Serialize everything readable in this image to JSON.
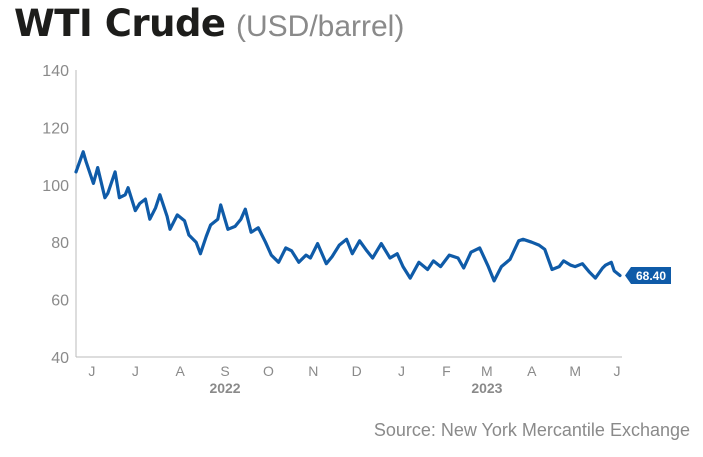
{
  "title": "WTI Crude",
  "unit": "(USD/barrel)",
  "source": "Source: New York Mercantile Exchange",
  "colors": {
    "line": "#0f5ba8",
    "badge": "#0f5ba8",
    "axis": "#bbbbbb",
    "tick_text": "#8a8a8a",
    "title": "#1d1d1b"
  },
  "chart_data": {
    "type": "line",
    "title": "WTI Crude",
    "ylabel": "",
    "xlabel": "",
    "ylim": [
      40,
      140
    ],
    "yticks": [
      "140",
      "120",
      "100",
      "80",
      "60",
      "40"
    ],
    "months": [
      "J",
      "J",
      "A",
      "S",
      "O",
      "N",
      "D",
      "J",
      "F",
      "M",
      "A",
      "M",
      "J"
    ],
    "years": [
      "2022",
      "2023"
    ],
    "x": [
      "2022-06-01",
      "2022-06-06",
      "2022-06-08",
      "2022-06-13",
      "2022-06-16",
      "2022-06-21",
      "2022-06-23",
      "2022-06-28",
      "2022-07-01",
      "2022-07-05",
      "2022-07-07",
      "2022-07-12",
      "2022-07-15",
      "2022-07-19",
      "2022-07-22",
      "2022-07-26",
      "2022-07-29",
      "2022-08-03",
      "2022-08-05",
      "2022-08-10",
      "2022-08-15",
      "2022-08-18",
      "2022-08-23",
      "2022-08-26",
      "2022-08-30",
      "2022-09-02",
      "2022-09-07",
      "2022-09-09",
      "2022-09-14",
      "2022-09-19",
      "2022-09-23",
      "2022-09-26",
      "2022-09-30",
      "2022-10-05",
      "2022-10-10",
      "2022-10-14",
      "2022-10-19",
      "2022-10-24",
      "2022-10-28",
      "2022-11-02",
      "2022-11-07",
      "2022-11-10",
      "2022-11-15",
      "2022-11-21",
      "2022-11-25",
      "2022-11-30",
      "2022-12-05",
      "2022-12-09",
      "2022-12-14",
      "2022-12-19",
      "2022-12-23",
      "2022-12-29",
      "2023-01-04",
      "2023-01-09",
      "2023-01-13",
      "2023-01-18",
      "2023-01-24",
      "2023-01-30",
      "2023-02-03",
      "2023-02-08",
      "2023-02-14",
      "2023-02-20",
      "2023-02-24",
      "2023-03-01",
      "2023-03-07",
      "2023-03-13",
      "2023-03-17",
      "2023-03-22",
      "2023-03-28",
      "2023-04-03",
      "2023-04-06",
      "2023-04-12",
      "2023-04-17",
      "2023-04-21",
      "2023-04-26",
      "2023-05-01",
      "2023-05-04",
      "2023-05-09",
      "2023-05-12",
      "2023-05-17",
      "2023-05-22",
      "2023-05-26",
      "2023-05-31",
      "2023-06-02",
      "2023-06-06",
      "2023-06-08",
      "2023-06-12"
    ],
    "series": [
      {
        "values": [
          104.5,
          111.5,
          108,
          100.5,
          106,
          95.5,
          97,
          104.5,
          95.5,
          96.5,
          99,
          91,
          93.5,
          95,
          88,
          92,
          96.5,
          89,
          84.5,
          89.5,
          87.5,
          82.5,
          80,
          76,
          82,
          86,
          88,
          93,
          84.5,
          85.5,
          88,
          91.5,
          83.5,
          85,
          80,
          75.5,
          73,
          78,
          77,
          73,
          75.5,
          74.5,
          79.5,
          72.5,
          75,
          79,
          81,
          76,
          80.5,
          77,
          74.5,
          79.5,
          74.5,
          76,
          71.5,
          67.5,
          73,
          70.5,
          73.5,
          71.5,
          75.5,
          74.5,
          71,
          76.5,
          78,
          71.5,
          66.5,
          71.5,
          74,
          80.5,
          81,
          80,
          79,
          77.5,
          70.5,
          71.5,
          73.5,
          72,
          71.5,
          72.5,
          69.5,
          67.5,
          71,
          72,
          73,
          70,
          68.4
        ]
      }
    ],
    "last_value": "68.40"
  }
}
